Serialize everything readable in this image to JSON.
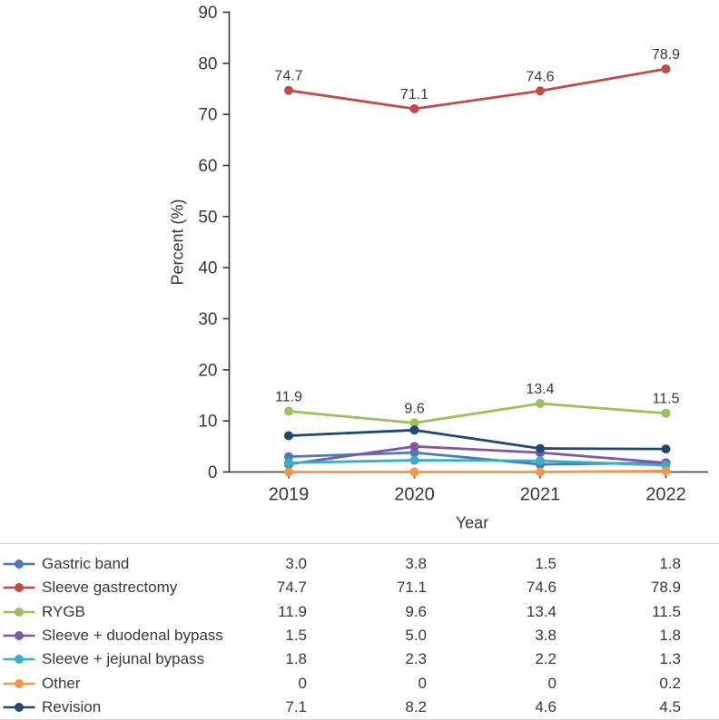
{
  "chart_data": {
    "type": "line",
    "title": "",
    "xlabel": "Year",
    "ylabel": "Percent (%)",
    "ylim": [
      0,
      90
    ],
    "ytick_step": 10,
    "ytick_labels": [
      "0",
      "10",
      "20",
      "30",
      "40",
      "50",
      "60",
      "70",
      "80",
      "90"
    ],
    "categories": [
      "2019",
      "2020",
      "2021",
      "2022"
    ],
    "grid": false,
    "legend_position": "bottom-table",
    "axis_color": "#383838",
    "series": [
      {
        "name": "Gastric band",
        "color": "#4a7bb7",
        "values": [
          3.0,
          3.8,
          1.5,
          1.8
        ],
        "display": [
          "3.0",
          "3.8",
          "1.5",
          "1.8"
        ],
        "point_labels": false
      },
      {
        "name": "Sleeve gastrectomy",
        "color": "#c04b48",
        "values": [
          74.7,
          71.1,
          74.6,
          78.9
        ],
        "display": [
          "74.7",
          "71.1",
          "74.6",
          "78.9"
        ],
        "point_labels": true
      },
      {
        "name": "RYGB",
        "color": "#9cc05c",
        "values": [
          11.9,
          9.6,
          13.4,
          11.5
        ],
        "display": [
          "11.9",
          "9.6",
          "13.4",
          "11.5"
        ],
        "point_labels": true
      },
      {
        "name": "Sleeve + duodenal bypass",
        "color": "#7e58a5",
        "values": [
          1.5,
          5.0,
          3.8,
          1.8
        ],
        "display": [
          "1.5",
          "5.0",
          "3.8",
          "1.8"
        ],
        "point_labels": false
      },
      {
        "name": "Sleeve + jejunal bypass",
        "color": "#36b0c6",
        "values": [
          1.8,
          2.3,
          2.2,
          1.3
        ],
        "display": [
          "1.8",
          "2.3",
          "2.2",
          "1.3"
        ],
        "point_labels": false
      },
      {
        "name": "Other",
        "color": "#f0994e",
        "values": [
          0,
          0,
          0,
          0.2
        ],
        "display": [
          "0",
          "0",
          "0",
          "0.2"
        ],
        "point_labels": false
      },
      {
        "name": "Revision",
        "color": "#1f4a6e",
        "values": [
          7.1,
          8.2,
          4.6,
          4.5
        ],
        "display": [
          "7.1",
          "8.2",
          "4.6",
          "4.5"
        ],
        "point_labels": false
      }
    ]
  }
}
